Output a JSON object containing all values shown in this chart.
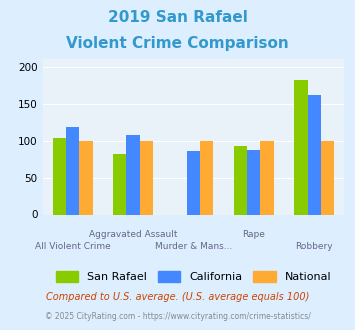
{
  "title_line1": "2019 San Rafael",
  "title_line2": "Violent Crime Comparison",
  "title_color": "#3399cc",
  "categories": [
    "All Violent Crime",
    "Aggravated Assault",
    "Murder & Mans...",
    "Rape",
    "Robbery"
  ],
  "cat_labels_row1": [
    "",
    "Aggravated Assault",
    "",
    "Rape",
    ""
  ],
  "cat_labels_row2": [
    "All Violent Crime",
    "",
    "Murder & Mans...",
    "",
    "Robbery"
  ],
  "san_rafael": [
    104,
    82,
    0,
    93,
    182
  ],
  "california": [
    118,
    108,
    86,
    87,
    162
  ],
  "national": [
    100,
    100,
    100,
    100,
    100
  ],
  "color_san_rafael": "#88cc00",
  "color_california": "#4488ff",
  "color_national": "#ffaa33",
  "ylim": [
    0,
    210
  ],
  "yticks": [
    0,
    50,
    100,
    150,
    200
  ],
  "legend_labels": [
    "San Rafael",
    "California",
    "National"
  ],
  "footnote1": "Compared to U.S. average. (U.S. average equals 100)",
  "footnote2": "© 2025 CityRating.com - https://www.cityrating.com/crime-statistics/",
  "footnote1_color": "#cc4400",
  "footnote2_color": "#888888",
  "bg_color": "#ddeeff",
  "plot_bg_color": "#e8f2f8"
}
